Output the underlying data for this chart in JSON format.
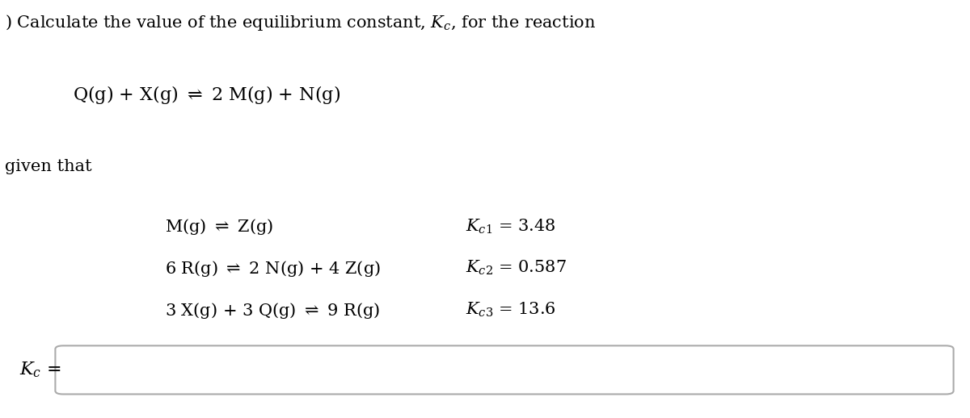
{
  "title_line": ") Calculate the value of the equilibrium constant, $K_c$, for the reaction",
  "main_reaction": "Q(g) + X(g) $\\rightleftharpoons$ 2 M(g) + N(g)",
  "given_that": "given that",
  "reactions": [
    "M(g) $\\rightleftharpoons$ Z(g)",
    "6 R(g) $\\rightleftharpoons$ 2 N(g) + 4 Z(g)",
    "3 X(g) + 3 Q(g) $\\rightleftharpoons$ 9 R(g)"
  ],
  "kc_labels": [
    "$K_{c1}$ = 3.48",
    "$K_{c2}$ = 0.587",
    "$K_{c3}$ = 13.6"
  ],
  "answer_label": "$K_c$ =",
  "bg_color": "#ffffff",
  "text_color": "#000000",
  "font_size": 15,
  "box_edge_color": "#aaaaaa"
}
